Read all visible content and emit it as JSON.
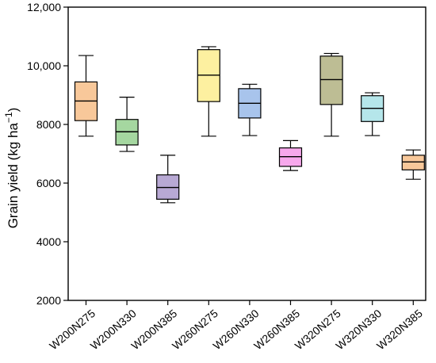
{
  "chart_data": {
    "type": "box",
    "title": "",
    "xlabel": "",
    "ylabel": "Grain yield (kg ha",
    "ylabel_superscript": "−1",
    "ylabel_close": ")",
    "ylim": [
      2000,
      12000
    ],
    "yticks": [
      2000,
      4000,
      6000,
      8000,
      10000,
      12000
    ],
    "ytick_labels": [
      "2000",
      "4000",
      "6000",
      "8000",
      "10,000",
      "12,000"
    ],
    "grid": false,
    "legend": "none",
    "categories": [
      "W200N275",
      "W200N330",
      "W200N385",
      "W260N275",
      "W260N330",
      "W260N385",
      "W320N275",
      "W320N330",
      "W320N385"
    ],
    "boxes": [
      {
        "category": "W200N275",
        "min": 7600,
        "q1": 8130,
        "median": 8800,
        "q3": 9450,
        "max": 10350,
        "color": "#f8c89a"
      },
      {
        "category": "W200N330",
        "min": 7080,
        "q1": 7300,
        "median": 7750,
        "q3": 8170,
        "max": 8930,
        "color": "#a5d7a0"
      },
      {
        "category": "W200N385",
        "min": 5330,
        "q1": 5450,
        "median": 5850,
        "q3": 6280,
        "max": 6950,
        "color": "#b8a9d4"
      },
      {
        "category": "W260N275",
        "min": 7600,
        "q1": 8780,
        "median": 9680,
        "q3": 10550,
        "max": 10650,
        "color": "#fdf0a0"
      },
      {
        "category": "W260N330",
        "min": 7620,
        "q1": 8220,
        "median": 8720,
        "q3": 9220,
        "max": 9370,
        "color": "#a8c4ec"
      },
      {
        "category": "W260N385",
        "min": 6430,
        "q1": 6570,
        "median": 6900,
        "q3": 7200,
        "max": 7450,
        "color": "#f7a8ec"
      },
      {
        "category": "W320N275",
        "min": 7600,
        "q1": 8680,
        "median": 9530,
        "q3": 10330,
        "max": 10420,
        "color": "#bdbd94"
      },
      {
        "category": "W320N330",
        "min": 7620,
        "q1": 8100,
        "median": 8550,
        "q3": 8980,
        "max": 9080,
        "color": "#b5e6ea"
      },
      {
        "category": "W320N385",
        "min": 6130,
        "q1": 6450,
        "median": 6720,
        "q3": 6950,
        "max": 7130,
        "color": "#f8c89a"
      }
    ]
  }
}
